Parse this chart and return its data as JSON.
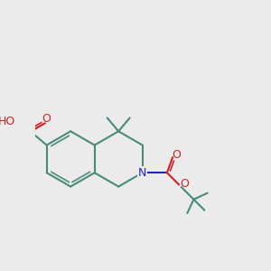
{
  "background_color": "#ebebeb",
  "bond_color": "#4a8a7a",
  "nitrogen_color": "#2222cc",
  "oxygen_color": "#cc2222",
  "font_size": 9.0,
  "figsize": [
    3.0,
    3.0
  ],
  "dpi": 100,
  "xlim": [
    -1.5,
    8.5
  ],
  "ylim": [
    -3.5,
    5.5
  ]
}
